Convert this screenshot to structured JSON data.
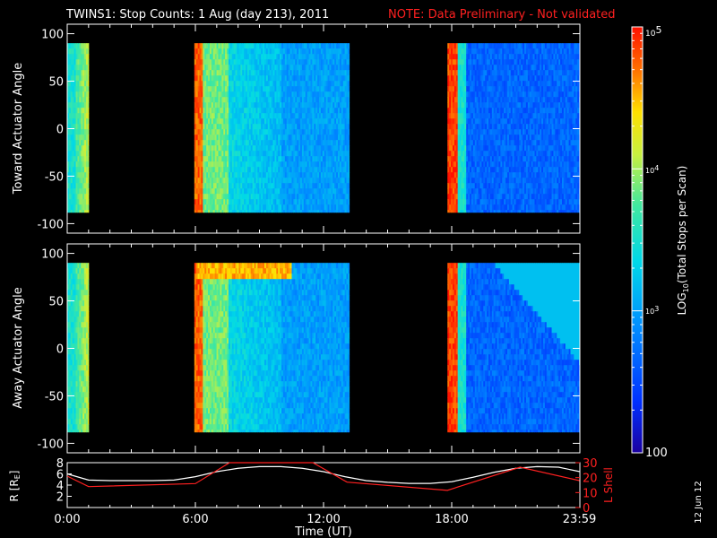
{
  "header": {
    "title": "TWINS1: Stop Counts:  1 Aug (day 213), 2011",
    "note": "NOTE: Data Preliminary - Not validated",
    "note_color": "#ff2020"
  },
  "footer": {
    "date_stamp": "12 Jun 12"
  },
  "chart_data": [
    {
      "type": "heatmap",
      "name": "toward",
      "ylabel": "Toward Actuator Angle",
      "ylim": [
        -110,
        110
      ],
      "yticks": [
        100,
        50,
        0,
        -50,
        -100
      ],
      "xlim_hours": [
        0,
        24
      ],
      "angle_range": [
        -88,
        90
      ],
      "data_intervals_hours": [
        [
          0.0,
          1.0
        ],
        [
          5.95,
          13.2
        ],
        [
          17.8,
          24.0
        ]
      ],
      "colorscale": "log10 counts per scan, 100 to 1e5"
    },
    {
      "type": "heatmap",
      "name": "away",
      "ylabel": "Away Actuator Angle",
      "ylim": [
        -110,
        110
      ],
      "yticks": [
        100,
        50,
        0,
        -50,
        -100
      ],
      "xlim_hours": [
        0,
        24
      ],
      "angle_range": [
        -88,
        90
      ],
      "data_intervals_hours": [
        [
          0.0,
          1.0
        ],
        [
          5.95,
          13.2
        ],
        [
          17.8,
          24.0
        ]
      ],
      "colorscale": "log10 counts per scan, 100 to 1e5"
    },
    {
      "type": "line",
      "name": "orbit",
      "xlabel": "Time (UT)",
      "xticks": [
        "0:00",
        "6:00",
        "12:00",
        "18:00",
        "23:59"
      ],
      "xtick_hours": [
        0,
        6,
        12,
        18,
        23.98
      ],
      "ylabel_left": "R [R",
      "ylabel_left_sub": "E",
      "ylabel_left_end": "]",
      "ylabel_right": "L Shell",
      "ylim_left": [
        0,
        8
      ],
      "yticks_left": [
        8,
        6,
        4,
        2
      ],
      "ylim_right": [
        0,
        30
      ],
      "yticks_right": [
        30,
        20,
        10,
        0
      ],
      "series": [
        {
          "color": "#ffffff",
          "x": [
            0,
            1,
            2,
            3,
            4,
            5,
            6,
            7,
            8,
            9,
            10,
            11,
            12,
            13,
            14,
            15,
            16,
            17,
            18,
            19,
            20,
            21,
            22,
            23,
            24
          ],
          "y": [
            6.0,
            4.9,
            4.8,
            4.8,
            4.8,
            4.9,
            5.5,
            6.4,
            7.0,
            7.3,
            7.3,
            7.0,
            6.4,
            5.5,
            4.8,
            4.5,
            4.3,
            4.3,
            4.6,
            5.4,
            6.3,
            7.0,
            7.3,
            7.2,
            6.4
          ]
        },
        {
          "color": "#ff2020",
          "x": [
            0,
            1.0,
            6.0,
            7.6,
            11.5,
            13.1,
            17.8,
            21.2,
            23.98
          ],
          "y": [
            21.0,
            14.0,
            16.0,
            30.0,
            30.0,
            17.0,
            11.5,
            27.0,
            18.0
          ]
        }
      ]
    },
    {
      "type": "colorbar",
      "label": "LOG",
      "label_sub": "10",
      "label_rest": "(Total Stops per Scan)",
      "range": [
        100,
        100000
      ],
      "tick_top": "10",
      "tick_top_exp": "5",
      "tick_mid1": "10",
      "tick_mid1_exp": "4",
      "tick_mid2": "10",
      "tick_mid2_exp": "3",
      "tick_bottom": "100",
      "log_ticks": [
        100000,
        10000,
        1000,
        100
      ]
    }
  ]
}
